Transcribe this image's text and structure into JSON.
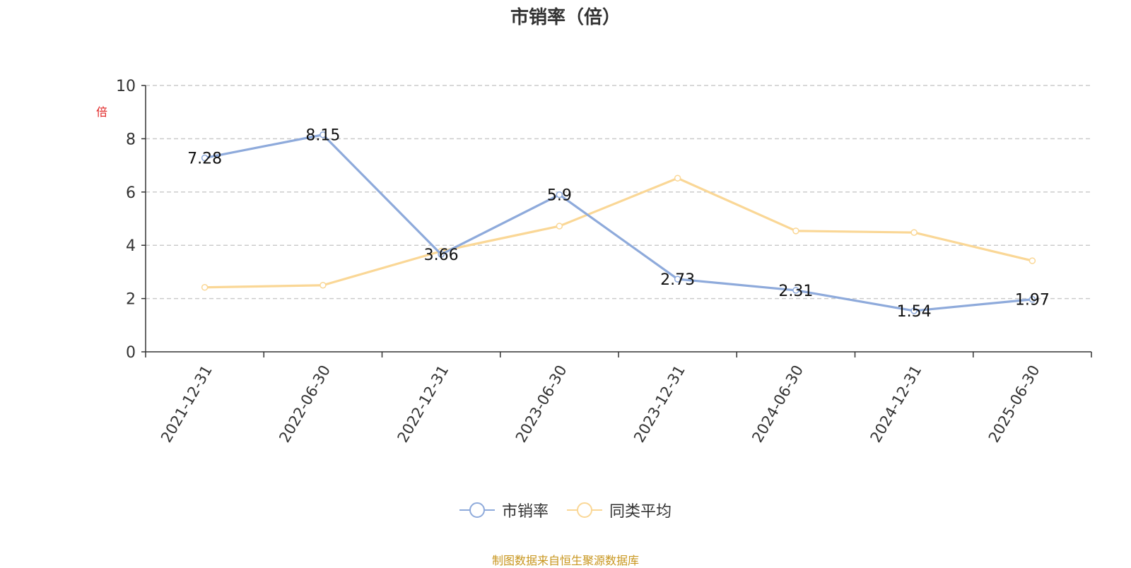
{
  "chart_data": {
    "type": "line",
    "title": "市销率（倍）",
    "unit": "倍",
    "categories": [
      "2021-12-31",
      "2022-06-30",
      "2022-12-31",
      "2023-06-30",
      "2023-12-31",
      "2024-06-30",
      "2024-12-31",
      "2025-06-30"
    ],
    "ylim": [
      0,
      10
    ],
    "yticks": [
      0,
      2,
      4,
      6,
      8,
      10
    ],
    "grid": true,
    "legend_position": "bottom",
    "series": [
      {
        "name": "市销率",
        "color": "#8eaadb",
        "values": [
          7.28,
          8.15,
          3.66,
          5.9,
          2.73,
          2.31,
          1.54,
          1.97
        ],
        "labels": [
          "7.28",
          "8.15",
          "3.66",
          "5.9",
          "2.73",
          "2.31",
          "1.54",
          "1.97"
        ]
      },
      {
        "name": "同类平均",
        "color": "#fad796",
        "values": [
          2.42,
          2.5,
          3.78,
          4.72,
          6.52,
          4.54,
          4.48,
          3.42
        ]
      }
    ]
  },
  "source": "制图数据来自恒生聚源数据库"
}
